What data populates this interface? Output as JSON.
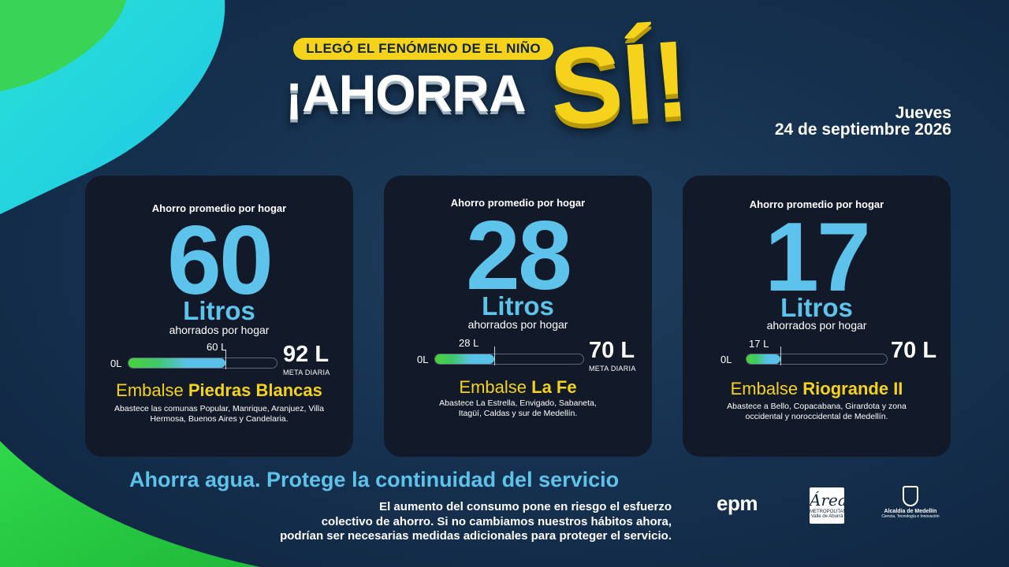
{
  "header": {
    "kicker": "LLEGÓ EL FENÓMENO DE EL NIÑO",
    "title_main": "¡AHORRA",
    "title_si": "SÍ!",
    "date_day": "Jueves",
    "date_full": "24 de septiembre 2026"
  },
  "colors": {
    "accent_blue": "#5ec3ea",
    "accent_yellow": "#f5d31a",
    "accent_green": "#4bd23a",
    "card_bg": "#121a29"
  },
  "cards": [
    {
      "label_top": "Ahorro promedio por hogar",
      "value": "60",
      "unit": "Litros",
      "sub": "ahorrados por hogar",
      "bar_zero": "0L",
      "bar_value_label": "60 L",
      "bar_fraction": 0.652,
      "goal": "92 L",
      "goal_caption": "META DIARIA",
      "reservoir_prefix": "Embalse ",
      "reservoir_name": "Piedras Blancas",
      "desc": "Abastece las comunas Popular, Manrique, Aranjuez, Villa Hermosa, Buenos Aires y Candelaria."
    },
    {
      "label_top": "Ahorro promedio por hogar",
      "value": "28",
      "unit": "Litros",
      "sub": "ahorrados por hogar",
      "bar_zero": "0L",
      "bar_value_label": "28 L",
      "bar_fraction": 0.4,
      "goal": "70 L",
      "goal_caption": "META DIARIA",
      "reservoir_prefix": "Embalse ",
      "reservoir_name": "La Fe",
      "desc": "Abastece La Estrella, Envigado, Sabaneta, Itagüí, Caldas y sur de Medellín."
    },
    {
      "label_top": "Ahorro promedio por hogar",
      "value": "17",
      "unit": "Litros",
      "sub": "ahorrados por hogar",
      "bar_zero": "0L",
      "bar_value_label": "17 L",
      "bar_fraction": 0.243,
      "goal": "70 L",
      "goal_caption": "",
      "reservoir_prefix": "Embalse ",
      "reservoir_name": "Riogrande II",
      "desc": "Abastece a Bello, Copacabana, Girardota y zona occidental y noroccidental de Medellín."
    }
  ],
  "footer": {
    "slogan": "Ahorra agua. Protege la continuidad del servicio",
    "text_line1": "El aumento del consumo pone en riesgo el esfuerzo",
    "text_line2": "colectivo de ahorro. Si no cambiamos nuestros hábitos ahora,",
    "text_line3": "podrían ser necesarias medidas adicionales  para proteger el servicio."
  },
  "logos": {
    "epm": "epm",
    "area_mark": "Área",
    "area_line1": "METROPOLITANA",
    "area_line2": "Valle de Aburrá",
    "alcaldia_line1": "Alcaldía de Medellín",
    "alcaldia_line2": "Ciencia, Tecnología e Innovación",
    "icons": [
      "epm-logo",
      "area-metropolitana-logo",
      "alcaldia-medellin-logo"
    ]
  }
}
